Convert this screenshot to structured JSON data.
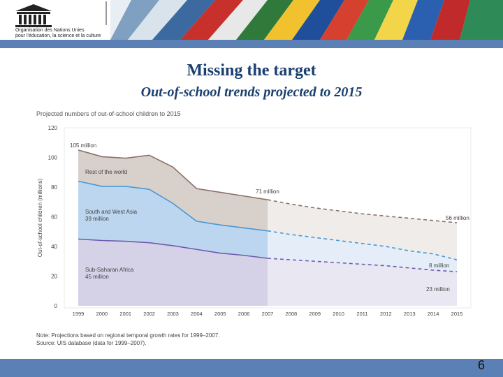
{
  "header": {
    "org_line1": "Organisation des Nations Unies",
    "org_line2": "pour l'éducation, la science et la culture"
  },
  "slide": {
    "title": "Missing the target",
    "subtitle": "Out-of-school trends projected to 2015",
    "page_number": "6"
  },
  "colors": {
    "rest": "#d8d0cb",
    "rest_proj": "#efecea",
    "asia": "#bcd6ef",
    "asia_proj": "#e5eef8",
    "ssa": "#d5d2e8",
    "ssa_proj": "#e9e7f2",
    "line_rest": "#8b7169",
    "line_asia": "#4d97d3",
    "line_ssa": "#6f5ab0",
    "band": "#5b80b6"
  },
  "chart_data": {
    "type": "area",
    "title": "Projected numbers of out-of-school children to 2015",
    "ylabel": "Out-of-school children (millions)",
    "xlabel": "",
    "ylim": [
      0,
      120
    ],
    "yticks": [
      0,
      20,
      40,
      60,
      80,
      100,
      120
    ],
    "x": [
      1999,
      2000,
      2001,
      2002,
      2003,
      2004,
      2005,
      2006,
      2007,
      2008,
      2009,
      2010,
      2011,
      2012,
      2013,
      2014,
      2015
    ],
    "actual_until": 2007,
    "grid": false,
    "series": [
      {
        "name": "Sub-Saharan Africa",
        "label_line2": "45 million",
        "values": [
          45,
          44,
          43.5,
          42.5,
          40.5,
          38,
          35.5,
          34,
          32,
          31,
          30,
          29,
          28,
          27,
          25.5,
          24,
          23
        ]
      },
      {
        "name": "South and West Asia",
        "label_line2": "39 million",
        "values": [
          84,
          80.5,
          80.5,
          78.5,
          69,
          57,
          54.5,
          52.5,
          50.5,
          48,
          46,
          44,
          42,
          40,
          37,
          35,
          31
        ]
      },
      {
        "name": "Rest of the world",
        "values": [
          105,
          100.5,
          99.5,
          101.5,
          93.5,
          79,
          76.5,
          74,
          71.5,
          68.5,
          66,
          64,
          62,
          60.5,
          59,
          57.5,
          56
        ]
      }
    ],
    "annotations": [
      "105 million",
      "71 million",
      "56 million",
      "8 million",
      "23 million"
    ],
    "notes": [
      "Note: Projections based on regional temporal growth rates for 1999–2007.",
      "Source: UIS database (data for 1999–2007)."
    ]
  }
}
